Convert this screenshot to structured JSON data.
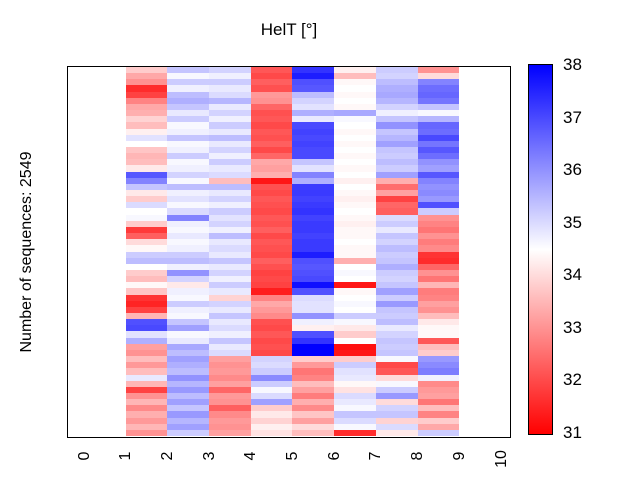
{
  "title": "HelT [°]",
  "ylabel": "Number of sequences: 2549",
  "xticks": [
    "0",
    "1",
    "2",
    "3",
    "4",
    "5",
    "6",
    "7",
    "8",
    "9",
    "10"
  ],
  "colorbar": {
    "labels_top_to_bottom": [
      "38",
      "37",
      "36",
      "35",
      "34",
      "33",
      "32",
      "31"
    ],
    "top_color": "#0000ff",
    "mid_color": "#ffffff",
    "bottom_color": "#ff0000"
  },
  "chart_data": {
    "type": "heatmap",
    "title": "HelT [°]",
    "ylabel": "Number of sequences: 2549",
    "n_sequences": 2549,
    "xlim": [
      0,
      10
    ],
    "xticks": [
      0,
      1,
      2,
      3,
      4,
      5,
      6,
      7,
      8,
      9,
      10
    ],
    "heatmap_x_extent": [
      1,
      9
    ],
    "grid": false,
    "legend_position": "right-colorbar",
    "colormap": {
      "type": "diverging-bwr",
      "low": "#ff0000",
      "mid": "#ffffff",
      "high": "#0000ff",
      "vmin": 31,
      "vmid": 34.5,
      "vmax": 38
    },
    "colorbar_ticks": [
      31,
      32,
      33,
      34,
      35,
      36,
      37,
      38
    ],
    "rows_downsampled": 60,
    "row_note": "2549 sequence rows downsampled to 60 bands, top to bottom, values in HelT degrees",
    "columns": [
      {
        "x": [
          1,
          2
        ],
        "values": [
          33.8,
          33.3,
          33.0,
          31.6,
          31.9,
          32.8,
          33.3,
          33.4,
          33.9,
          33.6,
          34.3,
          34.9,
          34.5,
          33.7,
          33.5,
          33.6,
          34.2,
          36.8,
          36.2,
          35.3,
          34.2,
          33.8,
          35.0,
          34.5,
          34.6,
          33.8,
          31.8,
          32.3,
          34.0,
          34.4,
          35.2,
          35.4,
          34.5,
          33.8,
          33.6,
          34.4,
          33.7,
          31.7,
          31.5,
          31.9,
          33.5,
          36.9,
          37.0,
          34.9,
          35.6,
          33.2,
          33.0,
          33.6,
          33.1,
          33.6,
          34.8,
          33.5,
          31.9,
          33.0,
          33.5,
          32.9,
          33.4,
          33.1,
          33.5,
          33.0
        ]
      },
      {
        "x": [
          2,
          3
        ],
        "values": [
          35.3,
          34.6,
          35.2,
          34.7,
          35.4,
          35.6,
          35.3,
          34.8,
          35.2,
          34.6,
          34.7,
          35.3,
          34.6,
          34.7,
          35.2,
          34.6,
          34.7,
          35.1,
          34.6,
          35.4,
          34.7,
          34.9,
          34.6,
          35.0,
          36.2,
          34.7,
          34.6,
          34.8,
          34.6,
          34.7,
          35.2,
          35.4,
          34.7,
          36.0,
          35.1,
          34.2,
          34.7,
          34.6,
          35.2,
          34.7,
          34.6,
          35.3,
          35.8,
          34.6,
          34.8,
          35.7,
          35.4,
          35.8,
          35.6,
          35.4,
          36.0,
          35.5,
          35.9,
          35.4,
          35.8,
          35.3,
          35.9,
          35.5,
          35.8,
          35.2
        ]
      },
      {
        "x": [
          3,
          4
        ],
        "values": [
          35.1,
          34.7,
          35.2,
          34.8,
          35.0,
          35.5,
          34.8,
          35.1,
          34.7,
          35.2,
          34.8,
          35.4,
          34.8,
          35.1,
          34.7,
          35.2,
          34.8,
          35.0,
          33.6,
          35.4,
          34.8,
          35.1,
          34.7,
          35.2,
          34.9,
          35.1,
          34.7,
          35.4,
          34.8,
          35.0,
          34.8,
          35.3,
          34.8,
          35.1,
          34.7,
          35.2,
          34.8,
          33.9,
          35.1,
          34.8,
          35.3,
          34.8,
          35.0,
          34.7,
          35.3,
          34.8,
          35.0,
          33.2,
          33.0,
          33.1,
          32.9,
          33.2,
          32.4,
          33.1,
          33.0,
          32.3,
          32.9,
          33.1,
          33.0,
          33.2
        ]
      },
      {
        "x": [
          4,
          5
        ],
        "values": [
          32.2,
          32.0,
          32.3,
          32.1,
          33.1,
          33.0,
          32.4,
          32.1,
          32.2,
          32.0,
          32.2,
          32.1,
          32.3,
          32.0,
          32.4,
          33.3,
          33.2,
          33.4,
          31.3,
          32.1,
          32.0,
          32.2,
          32.1,
          32.0,
          32.2,
          32.1,
          32.3,
          32.0,
          32.2,
          32.1,
          32.0,
          32.3,
          32.1,
          31.9,
          32.0,
          31.9,
          31.4,
          32.8,
          33.3,
          33.1,
          32.9,
          32.1,
          32.0,
          32.2,
          32.0,
          32.1,
          32.0,
          35.1,
          35.0,
          35.2,
          36.1,
          35.2,
          34.6,
          35.0,
          35.8,
          33.8,
          34.2,
          33.9,
          34.3,
          34.1
        ]
      },
      {
        "x": [
          5,
          6
        ],
        "values": [
          37.3,
          37.6,
          36.9,
          36.8,
          35.4,
          35.1,
          34.9,
          35.6,
          34.8,
          37.0,
          37.1,
          37.0,
          37.1,
          37.0,
          37.0,
          35.3,
          34.9,
          36.2,
          35.6,
          37.2,
          37.2,
          37.1,
          37.2,
          37.3,
          37.1,
          37.2,
          37.2,
          37.1,
          37.2,
          37.2,
          37.6,
          36.9,
          36.8,
          36.9,
          37.0,
          37.8,
          36.9,
          35.0,
          34.9,
          34.9,
          36.0,
          34.7,
          34.3,
          36.9,
          37.3,
          38.0,
          38.0,
          33.8,
          33.1,
          32.6,
          32.8,
          33.6,
          33.2,
          32.7,
          33.4,
          32.9,
          33.7,
          33.2,
          34.0,
          33.6
        ]
      },
      {
        "x": [
          6,
          7
        ],
        "values": [
          34.3,
          33.6,
          34.4,
          34.5,
          34.4,
          34.5,
          34.4,
          35.7,
          34.6,
          34.5,
          34.4,
          34.5,
          34.4,
          34.5,
          34.4,
          34.5,
          34.4,
          34.5,
          34.3,
          34.5,
          34.4,
          34.3,
          34.4,
          34.5,
          34.4,
          34.3,
          34.4,
          34.4,
          34.5,
          34.4,
          34.4,
          33.4,
          34.5,
          34.6,
          34.5,
          31.3,
          34.4,
          34.5,
          34.6,
          34.5,
          35.2,
          34.6,
          34.2,
          33.8,
          34.5,
          31.2,
          31.3,
          33.8,
          35.2,
          34.9,
          34.8,
          34.4,
          34.1,
          35.0,
          34.8,
          34.6,
          35.3,
          35.0,
          34.6,
          31.6
        ]
      },
      {
        "x": [
          7,
          8
        ],
        "values": [
          35.2,
          35.1,
          35.4,
          35.6,
          35.7,
          35.5,
          35.1,
          34.7,
          35.3,
          36.0,
          35.3,
          35.5,
          35.8,
          35.3,
          35.2,
          35.4,
          35.2,
          35.8,
          33.4,
          32.5,
          33.2,
          31.9,
          32.4,
          32.3,
          35.0,
          35.2,
          34.8,
          35.3,
          35.1,
          35.4,
          35.2,
          35.3,
          35.6,
          35.2,
          35.1,
          35.3,
          35.8,
          35.2,
          35.9,
          35.3,
          35.2,
          35.4,
          34.8,
          35.1,
          35.3,
          35.2,
          35.3,
          34.6,
          32.0,
          32.2,
          34.0,
          34.6,
          35.2,
          35.9,
          34.0,
          35.1,
          35.3,
          33.9,
          35.0,
          34.2
        ]
      },
      {
        "x": [
          8,
          9
        ],
        "values": [
          33.0,
          34.0,
          36.2,
          36.5,
          36.6,
          36.4,
          35.3,
          34.6,
          35.5,
          36.6,
          36.5,
          37.0,
          36.4,
          36.8,
          36.5,
          36.0,
          35.8,
          36.8,
          36.2,
          36.0,
          36.1,
          35.9,
          36.9,
          35.2,
          33.0,
          32.8,
          32.6,
          33.0,
          32.7,
          32.9,
          31.7,
          31.6,
          32.4,
          33.0,
          32.6,
          33.5,
          32.7,
          32.8,
          33.2,
          33.0,
          33.6,
          34.2,
          34.4,
          34.4,
          32.2,
          33.6,
          33.8,
          35.9,
          36.1,
          36.3,
          34.7,
          32.9,
          33.1,
          33.2,
          32.6,
          33.6,
          32.8,
          33.8,
          33.3,
          35.2
        ]
      }
    ]
  }
}
